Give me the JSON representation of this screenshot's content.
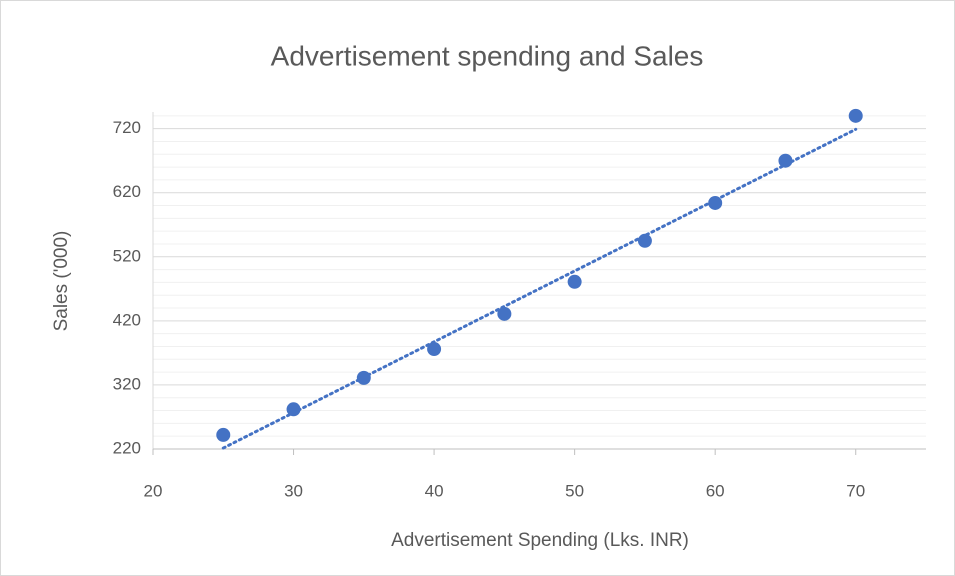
{
  "chart_data": {
    "type": "scatter",
    "title": "Advertisement spending and Sales",
    "x_label": "Advertisement Spending (Lks. INR)",
    "y_label": "Sales ('000)",
    "series": [
      {
        "color": "#4472c4",
        "x": [
          25,
          30,
          35,
          40,
          45,
          50,
          55,
          60,
          65,
          70
        ],
        "values": [
          242,
          282,
          331,
          376,
          431,
          481,
          545,
          604,
          670,
          740
        ]
      }
    ],
    "trendline": {
      "type": "linear",
      "style": "dotted",
      "color": "#4472c4"
    },
    "xlim": [
      20,
      75
    ],
    "xticks": [
      20,
      30,
      40,
      50,
      60,
      70
    ],
    "ylim": [
      220,
      746
    ],
    "yticks": [
      220,
      320,
      420,
      520,
      620,
      720
    ],
    "yminorticks": [
      240,
      260,
      280,
      300,
      340,
      360,
      380,
      400,
      440,
      460,
      480,
      500,
      540,
      560,
      580,
      600,
      640,
      660,
      680,
      700,
      740
    ],
    "grid": true
  }
}
